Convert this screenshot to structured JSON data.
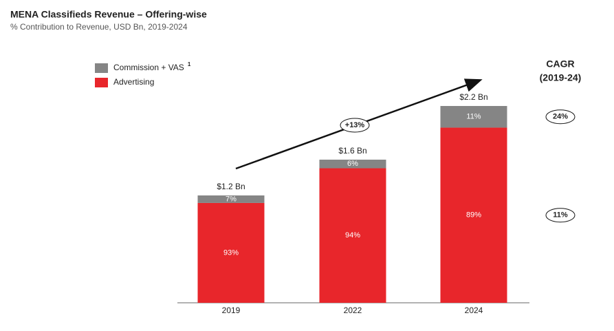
{
  "chart_data": {
    "type": "stacked_bar",
    "title": "MENA Classifieds Revenue – Offering-wise",
    "subtitle": "% Contribution to Revenue, USD Bn, 2019-2024",
    "categories": [
      "2019",
      "2022",
      "2024"
    ],
    "series": [
      {
        "name": "Commission + VAS",
        "footnote_marker": "1",
        "color": "#858585",
        "values": [
          7,
          6,
          11
        ],
        "value_labels": [
          "7%",
          "6%",
          "11%"
        ]
      },
      {
        "name": "Advertising",
        "color": "#e8262b",
        "values": [
          93,
          94,
          89
        ],
        "value_labels": [
          "93%",
          "94%",
          "89%"
        ]
      }
    ],
    "totals": {
      "values": [
        1.2,
        1.6,
        2.2
      ],
      "value_labels": [
        "$1.2 Bn",
        "$1.6 Bn",
        "$2.2 Bn"
      ]
    },
    "growth_arrow": {
      "value": 13,
      "value_label": "+13%"
    },
    "cagr": {
      "title_lines": [
        "CAGR",
        "(2019-24)"
      ],
      "values": [
        24,
        11
      ],
      "value_labels": [
        "24%",
        "11%"
      ]
    }
  }
}
